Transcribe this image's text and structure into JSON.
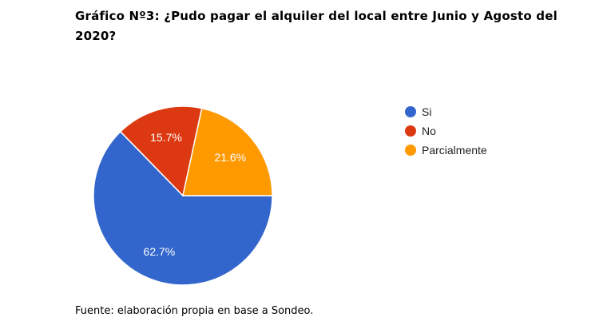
{
  "title": "Gráfico Nº3: ¿Pudo pagar el alquiler del local entre Junio y Agosto del 2020?",
  "chart_data": {
    "type": "pie",
    "slices": [
      {
        "label": "Si",
        "value": 62.7,
        "display": "62.7%",
        "color": "#3366CC"
      },
      {
        "label": "No",
        "value": 15.7,
        "display": "15.7%",
        "color": "#DC3912"
      },
      {
        "label": "Parcialmente",
        "value": 21.6,
        "display": "21.6%",
        "color": "#FF9900"
      }
    ],
    "legend_position": "right"
  },
  "source": "Fuente: elaboración propia en base a Sondeo."
}
